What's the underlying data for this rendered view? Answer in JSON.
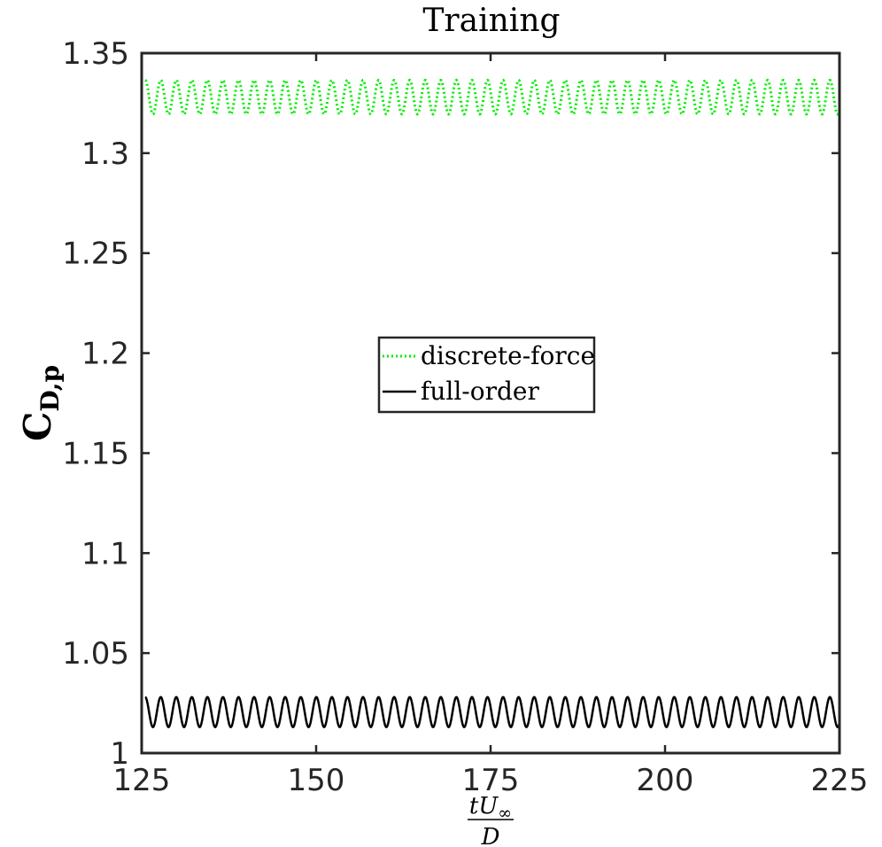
{
  "chart_data": {
    "type": "line",
    "title": "Training",
    "ylabel": {
      "main": "C",
      "sub": "D,p"
    },
    "xlabel": {
      "numerator": "tU",
      "numerator_sub": "∞",
      "denominator": "D"
    },
    "xlim": [
      125,
      225
    ],
    "ylim": [
      1,
      1.35
    ],
    "x_ticks": [
      125,
      150,
      175,
      200,
      225
    ],
    "x_tick_labels": [
      "125",
      "150",
      "175",
      "200",
      "225"
    ],
    "y_ticks": [
      1,
      1.05,
      1.1,
      1.15,
      1.2,
      1.25,
      1.3,
      1.35
    ],
    "y_tick_labels": [
      "1",
      "1.05",
      "1.1",
      "1.15",
      "1.2",
      "1.25",
      "1.3",
      "1.35"
    ],
    "grid": false,
    "legend_position": "center",
    "series": [
      {
        "name": "discrete-force",
        "color": "#00ee00",
        "style": "dotted",
        "mean": 1.328,
        "amplitude": 0.0085,
        "period": 2.23,
        "x_start": 125.5,
        "x_end": 225,
        "phase_start": "max"
      },
      {
        "name": "full-order",
        "color": "#000000",
        "style": "solid",
        "mean": 1.0205,
        "amplitude": 0.0075,
        "period": 2.23,
        "x_start": 125.5,
        "x_end": 225,
        "phase_start": "max"
      }
    ]
  }
}
